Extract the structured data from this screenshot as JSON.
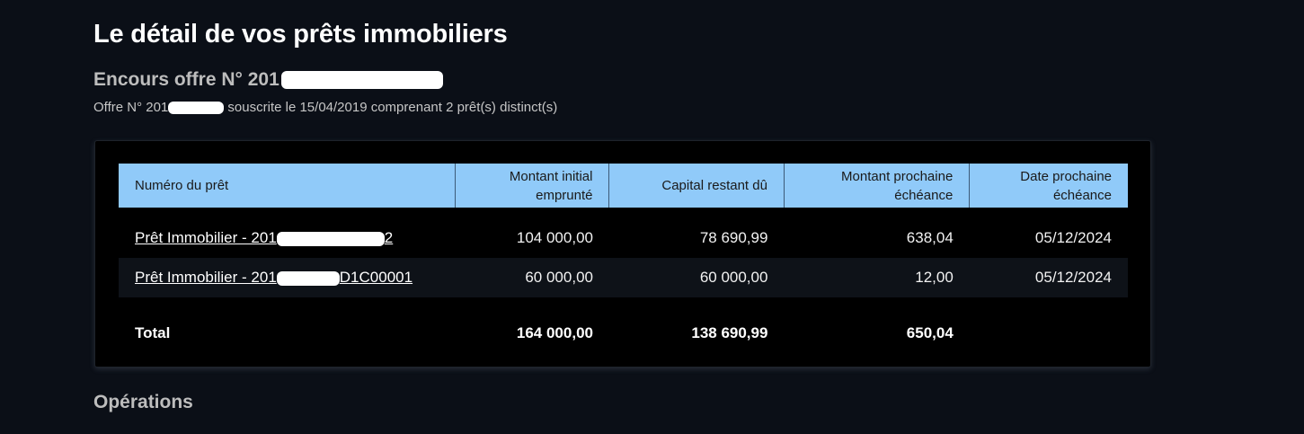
{
  "page": {
    "title": "Le détail de vos prêts immobiliers"
  },
  "offer": {
    "heading_prefix": "Encours offre N°  201",
    "subtitle_prefix": "Offre N° 201",
    "subtitle_suffix": " souscrite le 15/04/2019 comprenant 2 prêt(s) distinct(s)"
  },
  "table": {
    "headers": {
      "loan_number": "Numéro du prêt",
      "initial_amount": "Montant initial emprunté",
      "remaining_capital": "Capital restant dû",
      "next_amount": "Montant prochaine échéance",
      "next_date": "Date prochaine échéance"
    },
    "rows": [
      {
        "loan_prefix": "Prêt Immobilier - 201",
        "loan_suffix": "2",
        "initial_amount": "104 000,00",
        "remaining_capital": "78 690,99",
        "next_amount": "638,04",
        "next_date": "05/12/2024"
      },
      {
        "loan_prefix": "Prêt Immobilier - 201",
        "loan_suffix": "D1C00001",
        "initial_amount": "60 000,00",
        "remaining_capital": "60 000,00",
        "next_amount": "12,00",
        "next_date": "05/12/2024"
      }
    ],
    "total": {
      "label": "Total",
      "initial_amount": "164 000,00",
      "remaining_capital": "138 690,99",
      "next_amount": "650,04"
    }
  },
  "operations": {
    "title": "Opérations"
  },
  "colors": {
    "background": "#0b0f17",
    "header_bg": "#90caf9",
    "card_bg": "#000000"
  }
}
